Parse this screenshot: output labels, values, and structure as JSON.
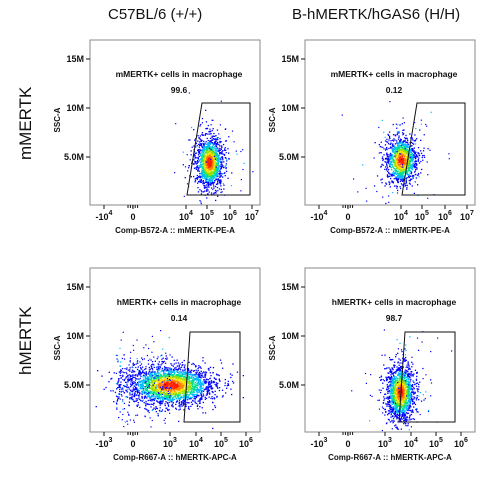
{
  "columns": [
    "C57BL/6 (+/+)",
    "B-hMERTK/hGAS6 (H/H)"
  ],
  "rows": [
    "mMERTK",
    "hMERTK"
  ],
  "chart_data": [
    {
      "type": "scatter",
      "panel": "mMERTK / C57BL/6 (+/+)",
      "xlabel": "Comp-B572-A :: mMERTK-PE-A",
      "ylabel": "SSC-A",
      "x_ticks": [
        {
          "base": "-10",
          "exp": "4"
        },
        {
          "base": "0",
          "exp": ""
        },
        {
          "base": "10",
          "exp": "4"
        },
        {
          "base": "10",
          "exp": "5"
        },
        {
          "base": "10",
          "exp": "6"
        },
        {
          "base": "10",
          "exp": "7"
        }
      ],
      "y_ticks": [
        "5.0M",
        "10M",
        "15M"
      ],
      "gate_label": "mMERTK+ cells in macrophage",
      "gate_value": "99.6",
      "density_center": {
        "x_decade": 4.95,
        "y_millions": 4.2
      },
      "x_scale": "biexponential",
      "y_scale": "linear"
    },
    {
      "type": "scatter",
      "panel": "mMERTK / B-hMERTK/hGAS6 (H/H)",
      "xlabel": "Comp-B572-A :: mMERTK-PE-A",
      "ylabel": "SSC-A",
      "x_ticks": [
        {
          "base": "-10",
          "exp": "4"
        },
        {
          "base": "0",
          "exp": ""
        },
        {
          "base": "10",
          "exp": "4"
        },
        {
          "base": "10",
          "exp": "5"
        },
        {
          "base": "10",
          "exp": "6"
        },
        {
          "base": "10",
          "exp": "7"
        }
      ],
      "y_ticks": [
        "5.0M",
        "10M",
        "15M"
      ],
      "gate_label": "mMERTK+ cells in macrophage",
      "gate_value": "0.12",
      "density_center": {
        "x_decade": 4.0,
        "y_millions": 4.3
      },
      "x_scale": "biexponential",
      "y_scale": "linear"
    },
    {
      "type": "scatter",
      "panel": "hMERTK / C57BL/6 (+/+)",
      "xlabel": "Comp-R667-A :: hMERTK-APC-A",
      "ylabel": "SSC-A",
      "x_ticks": [
        {
          "base": "-10",
          "exp": "3"
        },
        {
          "base": "0",
          "exp": ""
        },
        {
          "base": "10",
          "exp": "3"
        },
        {
          "base": "10",
          "exp": "4"
        },
        {
          "base": "10",
          "exp": "5"
        },
        {
          "base": "10",
          "exp": "6"
        }
      ],
      "y_ticks": [
        "5.0M",
        "10M",
        "15M"
      ],
      "gate_label": "hMERTK+ cells in macrophage",
      "gate_value": "0.14",
      "density_center": {
        "x_decade": 2.9,
        "y_millions": 4.3
      },
      "x_scale": "biexponential",
      "y_scale": "linear"
    },
    {
      "type": "scatter",
      "panel": "hMERTK / B-hMERTK/hGAS6 (H/H)",
      "xlabel": "Comp-R667-A :: hMERTK-APC-A",
      "ylabel": "SSC-A",
      "x_ticks": [
        {
          "base": "-10",
          "exp": "3"
        },
        {
          "base": "0",
          "exp": ""
        },
        {
          "base": "10",
          "exp": "3"
        },
        {
          "base": "10",
          "exp": "4"
        },
        {
          "base": "10",
          "exp": "5"
        },
        {
          "base": "10",
          "exp": "6"
        }
      ],
      "y_ticks": [
        "5.0M",
        "10M",
        "15M"
      ],
      "gate_label": "hMERTK+ cells in macrophage",
      "gate_value": "98.7",
      "density_center": {
        "x_decade": 4.15,
        "y_millions": 4.0
      },
      "x_scale": "biexponential",
      "y_scale": "linear"
    }
  ],
  "density_colors": [
    "#0000ff",
    "#00b7ff",
    "#00e08a",
    "#9be000",
    "#ffe000",
    "#ff8000",
    "#ff2000"
  ]
}
